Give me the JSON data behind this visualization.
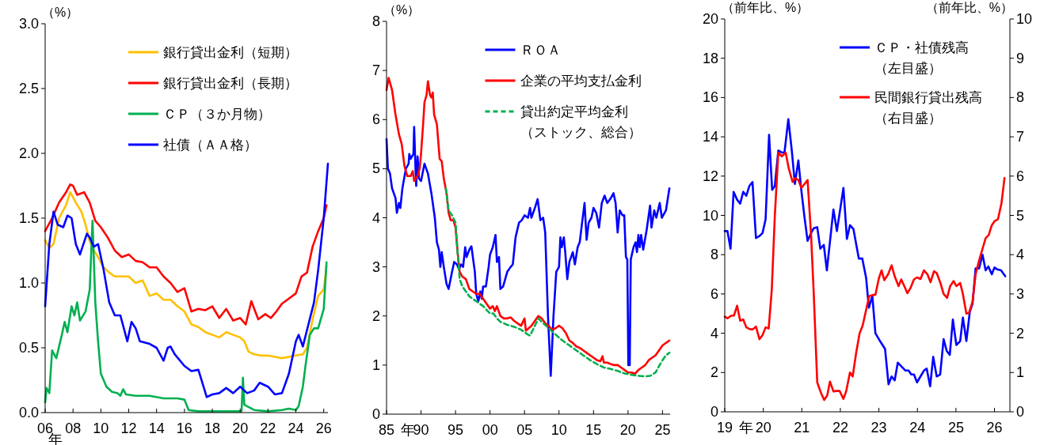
{
  "chart_data": [
    {
      "type": "line",
      "ylabel": "（%）",
      "xlabel": "年",
      "legend": "top right",
      "xlim": [
        2006,
        2026.3
      ],
      "xticks": [
        {
          "value": 2006,
          "label": "06"
        },
        {
          "value": 2008,
          "label": "08"
        },
        {
          "value": 2010,
          "label": "10"
        },
        {
          "value": 2012,
          "label": "12"
        },
        {
          "value": 2014,
          "label": "14"
        },
        {
          "value": 2016,
          "label": "16"
        },
        {
          "value": 2018,
          "label": "18"
        },
        {
          "value": 2020,
          "label": "20"
        },
        {
          "value": 2022,
          "label": "22"
        },
        {
          "value": 2024,
          "label": "24"
        },
        {
          "value": 2026,
          "label": "26"
        }
      ],
      "ylim": [
        0,
        3
      ],
      "yticks": [
        {
          "value": 0,
          "label": "0.0"
        },
        {
          "value": 0.5,
          "label": "0.5"
        },
        {
          "value": 1,
          "label": "1.0"
        },
        {
          "value": 1.5,
          "label": "1.5"
        },
        {
          "value": 2,
          "label": "2.0"
        },
        {
          "value": 2.5,
          "label": "2.5"
        },
        {
          "value": 3,
          "label": "3.0"
        }
      ],
      "series": [
        {
          "name": "銀行貸出金利（短期）",
          "color": "#ffc000",
          "x": [
            2006.0,
            2006.3,
            2006.6,
            2007.0,
            2007.5,
            2007.8,
            2008.2,
            2008.6,
            2008.9,
            2009.2,
            2009.5,
            2009.8,
            2010.2,
            2010.6,
            2011.0,
            2011.5,
            2012.0,
            2012.5,
            2013.0,
            2013.5,
            2014.0,
            2014.5,
            2015.0,
            2015.5,
            2016.0,
            2016.5,
            2017.0,
            2017.5,
            2018.0,
            2018.5,
            2019.0,
            2019.5,
            2020.0,
            2020.3,
            2020.6,
            2021.0,
            2021.5,
            2022.0,
            2022.5,
            2023.0,
            2023.5,
            2024.0,
            2024.5,
            2024.8,
            2025.2,
            2025.6,
            2026.0,
            2026.2
          ],
          "values": [
            1.33,
            1.27,
            1.3,
            1.5,
            1.6,
            1.7,
            1.62,
            1.55,
            1.45,
            1.32,
            1.25,
            1.2,
            1.12,
            1.08,
            1.05,
            1.05,
            1.05,
            1.0,
            1.02,
            0.9,
            0.92,
            0.87,
            0.87,
            0.82,
            0.78,
            0.68,
            0.66,
            0.62,
            0.6,
            0.58,
            0.62,
            0.6,
            0.58,
            0.55,
            0.47,
            0.45,
            0.44,
            0.44,
            0.43,
            0.42,
            0.43,
            0.44,
            0.45,
            0.5,
            0.72,
            0.9,
            0.95,
            1.13
          ]
        },
        {
          "name": "銀行貸出金利（長期）",
          "color": "#ff0000",
          "x": [
            2006.0,
            2006.5,
            2007.0,
            2007.5,
            2007.8,
            2008.0,
            2008.3,
            2008.8,
            2009.2,
            2009.6,
            2010.0,
            2010.5,
            2011.0,
            2011.5,
            2012.0,
            2012.5,
            2013.0,
            2013.5,
            2014.0,
            2014.5,
            2015.0,
            2015.5,
            2016.0,
            2016.5,
            2017.0,
            2017.5,
            2018.0,
            2018.5,
            2019.0,
            2019.5,
            2020.0,
            2020.4,
            2020.8,
            2021.3,
            2021.8,
            2022.2,
            2022.6,
            2023.0,
            2023.5,
            2024.0,
            2024.4,
            2024.8,
            2025.2,
            2025.6,
            2026.0,
            2026.2
          ],
          "values": [
            1.4,
            1.5,
            1.62,
            1.7,
            1.76,
            1.75,
            1.68,
            1.7,
            1.62,
            1.48,
            1.43,
            1.35,
            1.25,
            1.2,
            1.22,
            1.17,
            1.16,
            1.12,
            1.12,
            1.05,
            1.0,
            0.93,
            0.96,
            0.78,
            0.8,
            0.79,
            0.82,
            0.73,
            0.8,
            0.71,
            0.73,
            0.68,
            0.86,
            0.72,
            0.76,
            0.73,
            0.78,
            0.84,
            0.88,
            0.92,
            1.05,
            1.08,
            1.28,
            1.4,
            1.5,
            1.6
          ]
        },
        {
          "name": "ＣＰ（３か月物）",
          "color": "#00b050",
          "x": [
            2006.0,
            2006.1,
            2006.3,
            2006.5,
            2006.8,
            2007.2,
            2007.4,
            2007.6,
            2007.9,
            2008.1,
            2008.3,
            2008.5,
            2008.9,
            2009.2,
            2009.4,
            2009.6,
            2009.8,
            2010.0,
            2010.4,
            2010.8,
            2011.2,
            2011.4,
            2011.6,
            2011.8,
            2012.5,
            2013.5,
            2014.5,
            2015.5,
            2016.0,
            2016.3,
            2017.0,
            2018.0,
            2019.0,
            2020.1,
            2020.2,
            2020.3,
            2021.0,
            2022.0,
            2023.0,
            2023.5,
            2024.0,
            2024.2,
            2024.5,
            2024.7,
            2025.0,
            2025.3,
            2025.6,
            2026.0,
            2026.2
          ],
          "values": [
            0.08,
            0.19,
            0.15,
            0.48,
            0.42,
            0.6,
            0.7,
            0.62,
            0.82,
            0.75,
            0.85,
            0.71,
            0.78,
            0.95,
            1.48,
            0.85,
            0.55,
            0.3,
            0.2,
            0.16,
            0.15,
            0.13,
            0.18,
            0.14,
            0.13,
            0.13,
            0.11,
            0.11,
            0.1,
            0.02,
            0.01,
            0.01,
            0.01,
            0.01,
            0.27,
            0.06,
            0.02,
            0.01,
            0.02,
            0.03,
            0.02,
            0.05,
            0.2,
            0.37,
            0.6,
            0.65,
            0.65,
            0.8,
            1.16
          ]
        },
        {
          "name": "社債（ＡＡ格）",
          "color": "#0000ff",
          "x": [
            2006.0,
            2006.3,
            2006.6,
            2006.9,
            2007.3,
            2007.6,
            2007.9,
            2008.2,
            2008.5,
            2009.0,
            2009.2,
            2009.5,
            2009.8,
            2010.2,
            2010.6,
            2011.0,
            2011.4,
            2011.9,
            2012.2,
            2012.5,
            2012.8,
            2013.5,
            2014.0,
            2014.5,
            2014.8,
            2015.0,
            2015.3,
            2016.0,
            2016.5,
            2017.0,
            2017.6,
            2018.0,
            2018.5,
            2019.0,
            2019.5,
            2020.0,
            2020.5,
            2021.0,
            2021.4,
            2022.0,
            2022.5,
            2023.0,
            2023.5,
            2024.0,
            2024.2,
            2024.5,
            2024.9,
            2025.3,
            2025.6,
            2026.0,
            2026.3
          ],
          "values": [
            0.82,
            1.3,
            1.55,
            1.45,
            1.43,
            1.52,
            1.5,
            1.3,
            1.22,
            1.38,
            1.35,
            1.28,
            1.3,
            1.1,
            0.85,
            0.75,
            0.75,
            0.55,
            0.7,
            0.65,
            0.55,
            0.53,
            0.5,
            0.4,
            0.5,
            0.51,
            0.45,
            0.36,
            0.32,
            0.33,
            0.12,
            0.14,
            0.15,
            0.19,
            0.15,
            0.2,
            0.15,
            0.17,
            0.23,
            0.2,
            0.14,
            0.15,
            0.3,
            0.55,
            0.6,
            0.51,
            0.68,
            0.85,
            1.1,
            1.5,
            1.92
          ]
        }
      ]
    },
    {
      "type": "line",
      "ylabel": "（%）",
      "xlabel": "年",
      "legend": "top right",
      "xlim": [
        1985,
        2026.1
      ],
      "xticks": [
        {
          "value": 1985,
          "label": "85"
        },
        {
          "value": 1990,
          "label": "90"
        },
        {
          "value": 1995,
          "label": "95"
        },
        {
          "value": 2000,
          "label": "00"
        },
        {
          "value": 2005,
          "label": "05"
        },
        {
          "value": 2010,
          "label": "10"
        },
        {
          "value": 2015,
          "label": "15"
        },
        {
          "value": 2020,
          "label": "20"
        },
        {
          "value": 2025,
          "label": "25"
        }
      ],
      "ylim": [
        0,
        8
      ],
      "yticks": [
        0,
        1,
        2,
        3,
        4,
        5,
        6,
        7,
        8
      ],
      "series": [
        {
          "name": "ＲＯＡ",
          "color": "#0000ff",
          "x": [
            1985.0,
            1985.2,
            1985.5,
            1985.8,
            1986.3,
            1986.5,
            1986.8,
            1987.0,
            1987.3,
            1987.8,
            1988.2,
            1988.3,
            1988.5,
            1988.9,
            1989.0,
            1989.2,
            1989.3,
            1989.5,
            1989.7,
            1990.0,
            1990.5,
            1991.0,
            1991.5,
            1992.0,
            1992.3,
            1992.6,
            1992.8,
            1993.0,
            1993.3,
            1993.7,
            1994.0,
            1994.5,
            1994.8,
            1995.2,
            1995.5,
            1995.8,
            1996.1,
            1996.4,
            1996.6,
            1997.0,
            1997.3,
            1997.8,
            1998.0,
            1998.3,
            1998.6,
            1998.8,
            1999.0,
            1999.4,
            1999.8,
            2000.0,
            2000.4,
            2000.8,
            2001.0,
            2001.3,
            2001.5,
            2001.9,
            2002.5,
            2003.0,
            2003.3,
            2003.7,
            2004.2,
            2004.6,
            2005.0,
            2005.5,
            2005.8,
            2006.0,
            2006.5,
            2006.9,
            2007.3,
            2007.7,
            2008.0,
            2008.4,
            2008.8,
            2009.2,
            2009.6,
            2010.0,
            2010.2,
            2010.4,
            2010.7,
            2010.9,
            2011.2,
            2011.5,
            2012.0,
            2012.3,
            2012.7,
            2013.0,
            2013.3,
            2013.7,
            2014.0,
            2014.3,
            2014.7,
            2015.0,
            2015.4,
            2015.8,
            2016.2,
            2016.6,
            2017.0,
            2017.5,
            2017.9,
            2018.2,
            2018.5,
            2018.8,
            2019.2,
            2019.45,
            2019.7,
            2019.9,
            2020.05,
            2020.25,
            2020.4,
            2020.8,
            2021.1,
            2021.3,
            2021.5,
            2021.7,
            2021.9,
            2022.2,
            2022.7,
            2023.2,
            2023.4,
            2023.8,
            2024.1,
            2024.6,
            2024.9,
            2025.5,
            2026.0
          ],
          "values": [
            5.6,
            5.0,
            4.9,
            4.6,
            4.4,
            4.1,
            4.3,
            4.2,
            4.6,
            5.0,
            5.1,
            5.3,
            5.2,
            5.3,
            5.85,
            5.0,
            4.65,
            5.25,
            4.8,
            4.75,
            5.1,
            4.9,
            4.5,
            4.0,
            3.5,
            3.35,
            3.0,
            3.3,
            3.0,
            2.65,
            2.55,
            2.9,
            3.1,
            3.05,
            2.95,
            3.05,
            3.0,
            3.4,
            3.2,
            3.35,
            3.42,
            2.9,
            2.45,
            2.3,
            2.5,
            2.35,
            2.6,
            2.6,
            3.0,
            3.25,
            3.4,
            3.65,
            3.1,
            3.2,
            2.55,
            2.6,
            2.9,
            3.0,
            3.05,
            3.6,
            3.9,
            3.95,
            4.05,
            4.0,
            4.2,
            4.0,
            4.2,
            4.38,
            3.95,
            4.0,
            3.7,
            2.0,
            0.78,
            2.0,
            2.9,
            3.0,
            3.6,
            3.4,
            3.6,
            3.3,
            2.75,
            3.1,
            3.3,
            3.05,
            3.4,
            3.5,
            3.85,
            4.3,
            3.55,
            3.9,
            4.0,
            4.2,
            4.1,
            3.8,
            4.3,
            4.45,
            4.3,
            4.4,
            4.5,
            4.3,
            3.7,
            4.15,
            4.05,
            4.05,
            3.2,
            3.15,
            1.0,
            1.0,
            3.15,
            3.4,
            3.5,
            3.3,
            3.65,
            3.4,
            3.65,
            3.35,
            3.75,
            4.25,
            3.8,
            4.15,
            4.0,
            4.3,
            4.0,
            4.15,
            4.6
          ]
        },
        {
          "name": "企業の平均支払金利",
          "color": "#ff0000",
          "x": [
            1985.0,
            1985.3,
            1985.8,
            1986.3,
            1986.8,
            1987.2,
            1987.6,
            1988.0,
            1988.5,
            1988.8,
            1989.0,
            1989.5,
            1989.8,
            1990.0,
            1990.3,
            1990.5,
            1990.8,
            1991.0,
            1991.3,
            1991.5,
            1991.7,
            1991.9,
            1992.3,
            1992.7,
            1993.0,
            1993.3,
            1993.7,
            1994.0,
            1994.3,
            1994.7,
            1995.0,
            1995.3,
            1995.6,
            1996.0,
            1996.5,
            1997.0,
            1997.5,
            1998.0,
            1998.5,
            1999.0,
            1999.5,
            2000.0,
            2000.4,
            2000.7,
            2001.0,
            2001.5,
            2002.0,
            2002.5,
            2003.0,
            2003.5,
            2004.0,
            2004.5,
            2005.0,
            2005.2,
            2005.6,
            2006.0,
            2006.5,
            2007.0,
            2007.5,
            2008.0,
            2008.5,
            2009.0,
            2009.5,
            2010.0,
            2010.5,
            2011.0,
            2011.5,
            2012.0,
            2012.5,
            2013.0,
            2013.5,
            2014.0,
            2014.5,
            2015.0,
            2015.5,
            2016.0,
            2016.3,
            2016.5,
            2017.0,
            2017.5,
            2018.0,
            2018.5,
            2019.0,
            2019.5,
            2020.0,
            2020.5,
            2021.0,
            2021.5,
            2022.0,
            2022.5,
            2023.0,
            2023.5,
            2024.0,
            2024.5,
            2025.0,
            2026.0
          ],
          "values": [
            6.6,
            6.85,
            6.6,
            6.1,
            5.7,
            5.5,
            5.05,
            4.85,
            4.85,
            4.95,
            4.75,
            4.85,
            5.0,
            5.3,
            5.9,
            6.35,
            6.5,
            6.78,
            6.5,
            6.45,
            6.55,
            6.1,
            5.9,
            5.2,
            5.15,
            4.8,
            4.5,
            4.1,
            3.95,
            3.95,
            3.8,
            3.3,
            2.9,
            2.8,
            2.75,
            2.55,
            2.5,
            2.45,
            2.45,
            2.35,
            2.25,
            2.15,
            2.2,
            2.1,
            2.2,
            2.0,
            1.95,
            1.95,
            1.97,
            1.9,
            1.85,
            1.8,
            1.95,
            1.7,
            1.75,
            1.8,
            1.9,
            2.0,
            1.95,
            1.85,
            1.8,
            1.72,
            1.75,
            1.8,
            1.75,
            1.65,
            1.5,
            1.45,
            1.38,
            1.35,
            1.3,
            1.25,
            1.2,
            1.15,
            1.1,
            1.08,
            1.18,
            1.05,
            1.05,
            1.02,
            1.0,
            1.0,
            0.95,
            0.9,
            0.85,
            0.85,
            0.82,
            0.9,
            0.95,
            1.0,
            1.1,
            1.15,
            1.2,
            1.3,
            1.4,
            1.5
          ]
        },
        {
          "name": "貸出約定平均金利（ストック、総合）",
          "color": "#00b050",
          "line_style": "dashed",
          "x": [
            1993.6,
            1994.0,
            1994.5,
            1995.0,
            1995.3,
            1995.6,
            1996.0,
            1996.5,
            1997.0,
            1998.0,
            1999.0,
            2000.0,
            2000.5,
            2001.0,
            2001.5,
            2002.5,
            2003.5,
            2004.5,
            2005.5,
            2005.8,
            2006.5,
            2007.0,
            2007.5,
            2008.5,
            2009.5,
            2010.5,
            2011.5,
            2012.5,
            2013.5,
            2014.5,
            2015.5,
            2016.5,
            2017.5,
            2018.5,
            2019.5,
            2020.5,
            2021.5,
            2022.5,
            2023.2,
            2024.0,
            2024.5,
            2025.0,
            2025.5,
            2026.0
          ],
          "values": [
            4.6,
            4.15,
            4.05,
            3.9,
            3.3,
            2.75,
            2.6,
            2.5,
            2.4,
            2.3,
            2.2,
            2.05,
            2.05,
            1.95,
            1.88,
            1.82,
            1.78,
            1.72,
            1.62,
            1.6,
            1.8,
            1.95,
            1.88,
            1.75,
            1.62,
            1.5,
            1.4,
            1.3,
            1.2,
            1.1,
            1.02,
            0.95,
            0.92,
            0.88,
            0.83,
            0.8,
            0.78,
            0.77,
            0.78,
            0.85,
            0.98,
            1.1,
            1.2,
            1.25
          ]
        }
      ]
    },
    {
      "type": "line",
      "ylabel": "（前年比、%）",
      "y2label": "（前年比、%）",
      "xlabel": "年",
      "legend": "top right",
      "xlim": [
        2019,
        2026.4
      ],
      "xticks": [
        {
          "value": 2019,
          "label": "19"
        },
        {
          "value": 2020,
          "label": "20"
        },
        {
          "value": 2021,
          "label": "21"
        },
        {
          "value": 2022,
          "label": "22"
        },
        {
          "value": 2023,
          "label": "23"
        },
        {
          "value": 2024,
          "label": "24"
        },
        {
          "value": 2025,
          "label": "25"
        },
        {
          "value": 2026,
          "label": "26"
        }
      ],
      "ylim": [
        0,
        20
      ],
      "yticks": [
        0,
        2,
        4,
        6,
        8,
        10,
        12,
        14,
        16,
        18,
        20
      ],
      "y2lim": [
        0,
        10
      ],
      "y2ticks": [
        0,
        1,
        2,
        3,
        4,
        5,
        6,
        7,
        8,
        9,
        10
      ],
      "series": [
        {
          "name": "ＣＰ・社債残高（左目盛）",
          "color": "#0000ff",
          "x": [
            2019.0,
            2019.07,
            2019.15,
            2019.23,
            2019.32,
            2019.4,
            2019.48,
            2019.56,
            2019.64,
            2019.72,
            2019.81,
            2019.9,
            2019.98,
            2020.06,
            2020.15,
            2020.23,
            2020.3,
            2020.39,
            2020.48,
            2020.55,
            2020.65,
            2020.74,
            2020.82,
            2020.91,
            2020.98,
            2021.07,
            2021.15,
            2021.24,
            2021.31,
            2021.4,
            2021.48,
            2021.57,
            2021.65,
            2021.82,
            2021.91,
            2022.08,
            2022.17,
            2022.25,
            2022.34,
            2022.48,
            2022.57,
            2022.67,
            2022.74,
            2022.83,
            2022.91,
            2023.03,
            2023.16,
            2023.25,
            2023.33,
            2023.41,
            2023.49,
            2023.69,
            2023.77,
            2023.84,
            2023.91,
            2023.99,
            2024.08,
            2024.17,
            2024.24,
            2024.33,
            2024.41,
            2024.5,
            2024.59,
            2024.68,
            2024.76,
            2024.84,
            2024.92,
            2025.01,
            2025.11,
            2025.18,
            2025.27,
            2025.36,
            2025.43,
            2025.51,
            2025.6,
            2025.69,
            2025.77,
            2025.84,
            2025.93,
            2026.0,
            2026.07,
            2026.17,
            2026.28
          ],
          "values": [
            9.2,
            9.2,
            8.3,
            11.2,
            10.8,
            10.6,
            11.2,
            11.0,
            11.5,
            11.7,
            8.85,
            8.95,
            9.1,
            9.8,
            14.1,
            11.3,
            11.5,
            13.3,
            13.2,
            13.2,
            14.9,
            13.3,
            11.6,
            12.8,
            11.4,
            9.9,
            8.7,
            9.1,
            9.35,
            9.4,
            8.3,
            8.5,
            7.2,
            10.3,
            9.2,
            11.4,
            8.8,
            9.5,
            9.3,
            7.8,
            7.8,
            6.8,
            5.3,
            5.9,
            4.0,
            3.6,
            3.2,
            1.4,
            1.8,
            1.6,
            2.5,
            2.1,
            2.1,
            1.9,
            1.9,
            1.5,
            1.8,
            2.1,
            2.2,
            1.3,
            2.8,
            1.8,
            1.9,
            3.7,
            3.1,
            2.9,
            4.7,
            3.4,
            3.6,
            4.8,
            3.6,
            5.1,
            5.5,
            7.3,
            7.3,
            8.0,
            7.2,
            7.4,
            7.0,
            7.35,
            7.25,
            7.2,
            6.9
          ]
        },
        {
          "name": "民間銀行貸出残高（右目盛）",
          "color": "#ff0000",
          "axis": "y2",
          "x": [
            2019.0,
            2019.07,
            2019.17,
            2019.24,
            2019.32,
            2019.4,
            2019.48,
            2019.56,
            2019.66,
            2019.73,
            2019.81,
            2019.9,
            2019.98,
            2020.06,
            2020.14,
            2020.22,
            2020.3,
            2020.39,
            2020.48,
            2020.58,
            2020.66,
            2020.76,
            2020.83,
            2020.91,
            2020.99,
            2021.07,
            2021.15,
            2021.24,
            2021.31,
            2021.4,
            2021.49,
            2021.58,
            2021.66,
            2021.73,
            2021.82,
            2021.9,
            2021.98,
            2022.08,
            2022.15,
            2022.25,
            2022.32,
            2022.41,
            2022.5,
            2022.58,
            2022.67,
            2022.75,
            2022.83,
            2022.91,
            2023.0,
            2023.07,
            2023.14,
            2023.24,
            2023.33,
            2023.41,
            2023.51,
            2023.58,
            2023.66,
            2023.74,
            2023.82,
            2023.91,
            2023.99,
            2024.08,
            2024.17,
            2024.26,
            2024.34,
            2024.43,
            2024.5,
            2024.59,
            2024.68,
            2024.77,
            2024.85,
            2024.94,
            2025.01,
            2025.11,
            2025.18,
            2025.27,
            2025.34,
            2025.43,
            2025.51,
            2025.6,
            2025.69,
            2025.77,
            2025.85,
            2025.93,
            2026.0,
            2026.09,
            2026.18,
            2026.26
          ],
          "values": [
            2.42,
            2.38,
            2.45,
            2.45,
            2.7,
            2.32,
            2.35,
            2.15,
            2.1,
            2.1,
            2.17,
            1.85,
            1.95,
            2.15,
            2.12,
            3.1,
            5.0,
            6.6,
            6.5,
            6.6,
            6.2,
            5.85,
            5.95,
            5.9,
            5.7,
            5.8,
            5.9,
            4.5,
            3.0,
            0.75,
            0.5,
            0.3,
            0.42,
            0.77,
            0.52,
            0.53,
            0.53,
            0.33,
            0.52,
            1.0,
            0.9,
            1.5,
            2.0,
            2.2,
            2.6,
            2.95,
            2.97,
            2.98,
            3.4,
            3.6,
            3.35,
            3.5,
            3.73,
            3.45,
            3.2,
            3.37,
            3.2,
            3.02,
            3.15,
            3.37,
            3.42,
            3.38,
            3.6,
            3.5,
            3.3,
            3.58,
            3.53,
            3.3,
            3.0,
            2.9,
            3.2,
            3.33,
            3.2,
            3.28,
            3.0,
            2.5,
            2.52,
            2.8,
            3.5,
            3.85,
            4.15,
            4.42,
            4.5,
            4.75,
            4.85,
            4.9,
            5.3,
            5.95
          ]
        }
      ]
    }
  ]
}
